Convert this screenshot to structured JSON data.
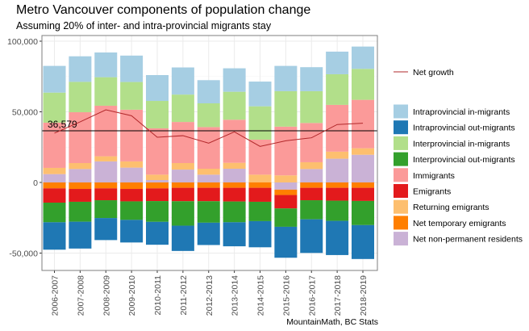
{
  "chart_data": {
    "type": "bar",
    "stacked": true,
    "title": "Metro Vancouver components of population change",
    "subtitle": "Assuming 20% of inter- and intra-provincial migrants stay",
    "caption": "MountainMath, BC Stats",
    "xlabel": "",
    "ylabel": "",
    "ylim": [
      -62300,
      104000
    ],
    "yticks": [
      -50000,
      0,
      50000,
      100000
    ],
    "ytick_labels": [
      "-50,000",
      "0",
      "50,000",
      "100,000"
    ],
    "grid": true,
    "legend_position": "right",
    "categories": [
      "2006-2007",
      "2007-2008",
      "2008-2009",
      "2009-2010",
      "2010-2011",
      "2011-2012",
      "2012-2013",
      "2013-2014",
      "2014-2015",
      "2015-2016",
      "2016-2017",
      "2017-2018",
      "2018-2019"
    ],
    "series": [
      {
        "name": "Intraprovincial in-migrants",
        "color": "#A6CEE3",
        "values": [
          18900,
          18100,
          17500,
          18700,
          18300,
          19200,
          16400,
          16600,
          17500,
          17900,
          17000,
          16000,
          15800
        ]
      },
      {
        "name": "Intraprovincial out-migrants",
        "color": "#1F78B4",
        "values": [
          -19400,
          -19000,
          -15600,
          -16000,
          -16200,
          -17900,
          -15800,
          -17000,
          -18500,
          -21900,
          -23800,
          -24200,
          -24000
        ]
      },
      {
        "name": "Interprovincial in-migrants",
        "color": "#B2DF8A",
        "values": [
          21300,
          21500,
          20200,
          19600,
          19400,
          19400,
          16800,
          19800,
          23600,
          25100,
          22500,
          21700,
          21900
        ]
      },
      {
        "name": "Interprovincial out-migrants",
        "color": "#33A02C",
        "values": [
          -13900,
          -14100,
          -12600,
          -13100,
          -14700,
          -17300,
          -15200,
          -14700,
          -13700,
          -13000,
          -13500,
          -14300,
          -17100
        ]
      },
      {
        "name": "Immigrants",
        "color": "#FB9A99",
        "values": [
          32000,
          36000,
          35800,
          36600,
          32800,
          29100,
          29500,
          30500,
          24800,
          34500,
          27800,
          33100,
          34300
        ]
      },
      {
        "name": "Emigrants",
        "color": "#E31A1C",
        "values": [
          -10100,
          -9100,
          -8400,
          -8800,
          -9000,
          -9500,
          -9500,
          -9700,
          -9900,
          -9500,
          -8800,
          -9100,
          -9300
        ]
      },
      {
        "name": "Returning emigrants",
        "color": "#FDBF6F",
        "values": [
          4400,
          4200,
          3600,
          4400,
          3800,
          4600,
          4200,
          4200,
          5500,
          5000,
          4800,
          5000,
          4600
        ]
      },
      {
        "name": "Net temporary emigrants",
        "color": "#FF7F00",
        "values": [
          -4200,
          -4600,
          -4200,
          -4600,
          -4200,
          -3800,
          -3800,
          -3800,
          -3800,
          -3800,
          -3800,
          -3800,
          -3800
        ]
      },
      {
        "name": "Net non-permanent residents",
        "color": "#CAB2D6",
        "values": [
          5900,
          9500,
          14900,
          10500,
          1700,
          9100,
          5500,
          9700,
          0,
          -5100,
          9500,
          16800,
          19600
        ]
      }
    ],
    "line_series": {
      "name": "Net growth",
      "color": "#B2282B",
      "values": [
        34900,
        42900,
        51400,
        47200,
        32000,
        33100,
        27800,
        35800,
        25500,
        29500,
        31600,
        41000,
        41900
      ]
    },
    "reference_line": {
      "value": 36579,
      "label": "36,579"
    }
  }
}
